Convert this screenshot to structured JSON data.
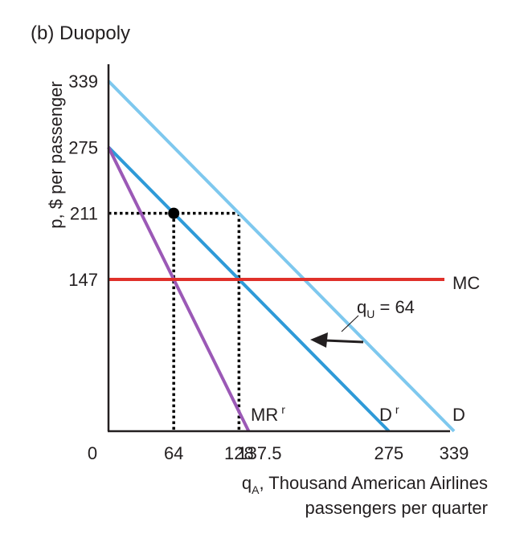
{
  "chart_data": {
    "type": "line",
    "title": "(b) Duopoly",
    "ylabel": "p, $ per passenger",
    "xlabel": {
      "q": "q",
      "sub": "A",
      "line1_rest": ", Thousand American Airlines",
      "line2": "passengers per quarter"
    },
    "xlim": [
      0,
      339
    ],
    "ylim": [
      0,
      339
    ],
    "origin_label": "0",
    "x_ticks": [
      {
        "value": 64,
        "label": "64"
      },
      {
        "value": 128,
        "label": "128"
      },
      {
        "value": 137.5,
        "label": "137.5"
      },
      {
        "value": 275,
        "label": "275"
      },
      {
        "value": 339,
        "label": "339"
      }
    ],
    "y_ticks": [
      {
        "value": 339,
        "label": "339"
      },
      {
        "value": 275,
        "label": "275"
      },
      {
        "value": 211,
        "label": "211"
      },
      {
        "value": 147,
        "label": "147"
      }
    ],
    "series": [
      {
        "key": "D",
        "name": "D",
        "points": [
          [
            0,
            339
          ],
          [
            339,
            0
          ]
        ],
        "color": "#7ec8ee"
      },
      {
        "key": "Dr",
        "name": "D",
        "sup": "r",
        "points": [
          [
            0,
            275
          ],
          [
            275,
            0
          ]
        ],
        "color": "#2e9ad8"
      },
      {
        "key": "MRr",
        "name": "MR",
        "sup": "r",
        "points": [
          [
            0,
            275
          ],
          [
            137.5,
            0
          ]
        ],
        "color": "#9b59b6"
      },
      {
        "key": "MC",
        "name": "MC",
        "points": [
          [
            0,
            147
          ],
          [
            339,
            147
          ]
        ],
        "color": "#e0302a"
      }
    ],
    "equilibrium": {
      "x": 64,
      "y": 211
    },
    "guide_lines": [
      {
        "from": [
          0,
          211
        ],
        "to": [
          128,
          211
        ]
      },
      {
        "from": [
          64,
          211
        ],
        "to": [
          64,
          0
        ]
      },
      {
        "from": [
          128,
          211
        ],
        "to": [
          128,
          0
        ]
      }
    ],
    "annotation": {
      "text_q": "q",
      "text_sub": "U",
      "text_rest": " = 64"
    }
  }
}
